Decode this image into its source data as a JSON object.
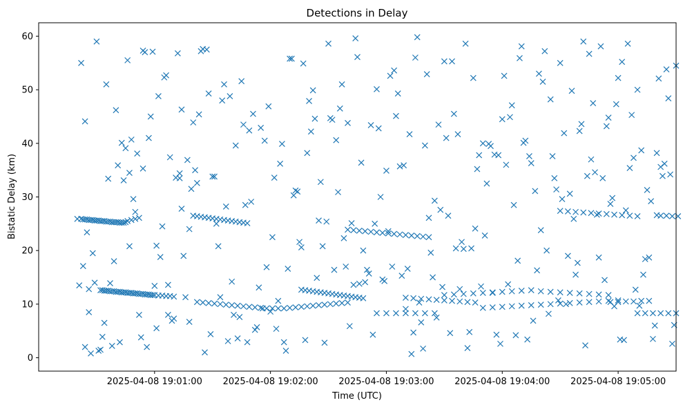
{
  "chart_data": {
    "type": "scatter",
    "title": "Detections in Delay",
    "xlabel": "Time (UTC)",
    "ylabel": "Bistatic Delay (km)",
    "marker": "x",
    "color": "#1f77b4",
    "grid": false,
    "legend": "none",
    "x_is_time": true,
    "x_start": "2025-04-08 19:00:10",
    "xlim": [
      "2025-04-08 19:00:00",
      "2025-04-08 19:05:30"
    ],
    "ylim": [
      -2.5,
      62.5
    ],
    "xticks": [
      {
        "label": "2025-04-08 19:01:00"
      },
      {
        "label": "2025-04-08 19:02:00"
      },
      {
        "label": "2025-04-08 19:03:00"
      },
      {
        "label": "2025-04-08 19:04:00"
      },
      {
        "label": "2025-04-08 19:05:00"
      }
    ],
    "yticks": [
      0,
      10,
      20,
      30,
      40,
      50,
      60
    ],
    "x_seconds": [
      10,
      12,
      13,
      14,
      15,
      16,
      17,
      18,
      19,
      20,
      21,
      22,
      23,
      24,
      25,
      26,
      27,
      28,
      29,
      30,
      31,
      32,
      33,
      34,
      35,
      36,
      38,
      40,
      42,
      22,
      23,
      24,
      25,
      26,
      27,
      28,
      29,
      30,
      31,
      32,
      33,
      34,
      35,
      36,
      37,
      38,
      39,
      40,
      41,
      42,
      43,
      44,
      45,
      46,
      47,
      48,
      49,
      50,
      52,
      54,
      56,
      58,
      60,
      70,
      72,
      74,
      76,
      78,
      80,
      82,
      84,
      86,
      88,
      90,
      92,
      94,
      96,
      98,
      72,
      75,
      78,
      81,
      84,
      87,
      90,
      93,
      96,
      99,
      102,
      105,
      108,
      111,
      114,
      117,
      120,
      123,
      126,
      129,
      132,
      135,
      138,
      141,
      144,
      147,
      150,
      126,
      128,
      130,
      132,
      134,
      136,
      138,
      140,
      142,
      144,
      146,
      148,
      150,
      152,
      154,
      156,
      158,
      150,
      153,
      156,
      159,
      162,
      165,
      168,
      171,
      174,
      177,
      180,
      183,
      186,
      189,
      192,
      165,
      170,
      175,
      180,
      185,
      190,
      195,
      180,
      184,
      188,
      192,
      196,
      200,
      204,
      208,
      212,
      216,
      200,
      205,
      210,
      215,
      220,
      225,
      230,
      235,
      240,
      245,
      250,
      255,
      260,
      265,
      270,
      275,
      280,
      285,
      220,
      225,
      230,
      235,
      240,
      245,
      250,
      255,
      260,
      265,
      270,
      275,
      280,
      285,
      290,
      260,
      264,
      268,
      272,
      276,
      280,
      284,
      288,
      292,
      296,
      300,
      286,
      290,
      294,
      298,
      302,
      306,
      300,
      304,
      308,
      312,
      316,
      320,
      310,
      312,
      315,
      318,
      321,
      12,
      14,
      16,
      20,
      25,
      30,
      34,
      36,
      38,
      40,
      45,
      50,
      52,
      55,
      58,
      62,
      65,
      68,
      70,
      75,
      80,
      85,
      90,
      95,
      100,
      105,
      110,
      115,
      120,
      125,
      130,
      135,
      140,
      145,
      150,
      155,
      160,
      165,
      170,
      175,
      180,
      185,
      190,
      195,
      200,
      205,
      210,
      215,
      220,
      225,
      230,
      235,
      240,
      245,
      250,
      255,
      260,
      265,
      270,
      275,
      280,
      285,
      290,
      295,
      300,
      305,
      310,
      315,
      320,
      11,
      15,
      18,
      22,
      27,
      31,
      37,
      41,
      44,
      48,
      53,
      57,
      61,
      64,
      67,
      71,
      74,
      78,
      83,
      87,
      92,
      97,
      102,
      107,
      112,
      117,
      122,
      127,
      132,
      137,
      142,
      147,
      152,
      157,
      162,
      167,
      172,
      177,
      182,
      187,
      192,
      197,
      202,
      207,
      212,
      217,
      222,
      227,
      232,
      237,
      242,
      247,
      252,
      257,
      262,
      267,
      272,
      277,
      282,
      287,
      292,
      297,
      302,
      307,
      312,
      317,
      13,
      19,
      24,
      29,
      33,
      39,
      43,
      47,
      51,
      56,
      60,
      63,
      66,
      69,
      73,
      77,
      81,
      86,
      91,
      96,
      101,
      106,
      111,
      116,
      121,
      126,
      131,
      136,
      141,
      146,
      151,
      156,
      161,
      166,
      171,
      176,
      181,
      186,
      191,
      196,
      201,
      206,
      211,
      216,
      221,
      226,
      231,
      236,
      241,
      246,
      251,
      256,
      261,
      266,
      271,
      276,
      281,
      286,
      291,
      296,
      301,
      306,
      311,
      316,
      16,
      21,
      26,
      32,
      35,
      42,
      46,
      49,
      54,
      59,
      64,
      72,
      79,
      84,
      89,
      94,
      99,
      104,
      109,
      114,
      119,
      124,
      129,
      134,
      139,
      144,
      149,
      154,
      159,
      164,
      169,
      174,
      179,
      184,
      189,
      194,
      199,
      204,
      209,
      214,
      219,
      224,
      229,
      234,
      239,
      244,
      249,
      254,
      259,
      264,
      269,
      274,
      279,
      284,
      289,
      294,
      299,
      304,
      309,
      314,
      319,
      14,
      17,
      23,
      28,
      37,
      44,
      51,
      57,
      63,
      68,
      76,
      82,
      88,
      93,
      98,
      103,
      108,
      113,
      118,
      123,
      128,
      133,
      138,
      143,
      148,
      153,
      158,
      163,
      168,
      173,
      178,
      183,
      188,
      193,
      198,
      203,
      208,
      213,
      218,
      223,
      228,
      233,
      238,
      243,
      248,
      253,
      258,
      263,
      268,
      273,
      278,
      283,
      288,
      293,
      298,
      303,
      308,
      313,
      318
    ],
    "y_km": [
      25.9,
      25.9,
      25.8,
      25.8,
      25.8,
      25.7,
      25.7,
      25.7,
      25.6,
      25.6,
      25.6,
      25.5,
      25.5,
      25.5,
      25.4,
      25.4,
      25.4,
      25.3,
      25.3,
      25.3,
      25.3,
      25.2,
      25.2,
      25.2,
      25.3,
      25.5,
      25.7,
      25.9,
      26.1,
      12.6,
      12.6,
      12.5,
      12.5,
      12.5,
      12.4,
      12.4,
      12.4,
      12.3,
      12.3,
      12.3,
      12.2,
      12.2,
      12.2,
      12.1,
      12.1,
      12.1,
      12.0,
      12.0,
      12.0,
      11.9,
      11.9,
      11.9,
      11.8,
      11.8,
      11.8,
      11.7,
      11.7,
      11.7,
      11.6,
      11.6,
      11.5,
      11.5,
      11.4,
      26.5,
      26.4,
      26.3,
      26.2,
      26.1,
      26.0,
      25.9,
      25.8,
      25.7,
      25.6,
      25.5,
      25.4,
      25.3,
      25.2,
      25.1,
      10.4,
      10.3,
      10.2,
      10.1,
      10.0,
      9.9,
      9.8,
      9.7,
      9.6,
      9.5,
      9.4,
      9.3,
      9.2,
      9.2,
      9.2,
      9.2,
      9.3,
      9.4,
      9.5,
      9.6,
      9.7,
      9.8,
      9.9,
      10.0,
      10.1,
      10.2,
      10.3,
      12.7,
      12.6,
      12.5,
      12.4,
      12.3,
      12.2,
      12.1,
      12.0,
      11.9,
      11.8,
      11.7,
      11.6,
      11.5,
      11.4,
      11.3,
      11.2,
      11.1,
      23.9,
      23.8,
      23.7,
      23.6,
      23.5,
      23.4,
      23.3,
      23.2,
      23.1,
      23.0,
      22.9,
      22.8,
      22.7,
      22.6,
      22.5,
      8.3,
      8.3,
      8.3,
      8.3,
      8.3,
      8.3,
      8.3,
      11.2,
      11.1,
      11.0,
      10.9,
      10.8,
      10.7,
      10.6,
      10.5,
      10.4,
      10.3,
      11.7,
      11.8,
      11.9,
      12.0,
      12.1,
      12.2,
      12.3,
      12.4,
      12.5,
      12.6,
      12.4,
      12.3,
      12.2,
      12.1,
      12.0,
      11.9,
      11.8,
      11.7,
      9.3,
      9.4,
      9.5,
      9.6,
      9.7,
      9.8,
      9.9,
      10.0,
      10.1,
      10.2,
      10.3,
      10.4,
      10.5,
      10.6,
      10.7,
      27.4,
      27.3,
      27.2,
      27.1,
      27.0,
      26.9,
      26.8,
      26.7,
      26.6,
      26.5,
      26.4,
      10.4,
      10.4,
      10.5,
      10.5,
      10.6,
      10.6,
      8.3,
      8.3,
      8.3,
      8.3,
      8.3,
      8.3,
      26.6,
      26.5,
      26.5,
      26.4,
      26.4,
      55.0,
      44.1,
      12.8,
      59.0,
      51.0,
      46.2,
      33.1,
      55.5,
      40.7,
      27.2,
      57.0,
      13.4,
      48.8,
      52.3,
      37.4,
      56.8,
      19.0,
      6.7,
      43.9,
      57.6,
      33.8,
      48.0,
      14.2,
      51.6,
      29.1,
      42.9,
      8.6,
      36.2,
      55.8,
      21.6,
      47.9,
      25.6,
      58.6,
      30.9,
      43.8,
      56.1,
      16.4,
      50.1,
      34.9,
      45.1,
      9.1,
      56.0,
      39.6,
      29.3,
      55.3,
      45.5,
      20.3,
      52.2,
      40.0,
      12.1,
      44.5,
      47.1,
      58.1,
      36.3,
      23.8,
      48.2,
      55.0,
      30.6,
      42.3,
      56.7,
      18.7,
      44.8,
      52.2,
      58.6,
      50.0,
      31.3,
      38.2,
      53.8,
      54.5,
      13.5,
      23.4,
      19.5,
      1.5,
      13.9,
      35.9,
      34.5,
      38.1,
      57.3,
      45.0,
      18.8,
      8.0,
      33.6,
      27.8,
      36.9,
      35.0,
      57.2,
      49.3,
      20.8,
      28.2,
      39.6,
      28.5,
      5.2,
      40.5,
      33.6,
      2.9,
      30.3,
      54.9,
      49.9,
      20.8,
      44.4,
      51.0,
      25.1,
      36.4,
      43.4,
      30.0,
      52.6,
      35.7,
      41.7,
      10.3,
      26.1,
      43.5,
      26.5,
      41.7,
      1.8,
      35.2,
      32.5,
      4.3,
      36.0,
      4.2,
      40.5,
      31.1,
      57.2,
      33.5,
      41.9,
      25.9,
      59.0,
      47.5,
      33.5,
      29.8,
      55.2,
      45.3,
      38.7,
      29.2,
      35.6,
      34.2,
      17.1,
      14.0,
      6.5,
      18.0,
      40.1,
      29.6,
      3.8,
      41.0,
      5.5,
      52.7,
      7.3,
      34.4,
      11.3,
      31.5,
      45.4,
      57.5,
      33.8,
      51.0,
      8.0,
      43.5,
      45.5,
      9.2,
      22.5,
      39.9,
      55.8,
      20.6,
      42.2,
      32.8,
      44.7,
      46.5,
      5.9,
      13.8,
      15.7,
      42.8,
      23.6,
      49.3,
      16.6,
      59.8,
      52.9,
      7.5,
      41.0,
      20.4,
      58.6,
      24.1,
      22.8,
      37.9,
      52.6,
      28.5,
      40.1,
      6.9,
      51.5,
      37.6,
      29.6,
      49.8,
      43.6,
      37.0,
      58.1,
      28.7,
      3.4,
      35.4,
      9.7,
      18.7,
      52.1,
      48.4,
      8.5,
      1.3,
      33.4,
      2.9,
      39.1,
      8.0,
      2.0,
      57.1,
      24.5,
      6.9,
      46.3,
      32.6,
      4.4,
      11.3,
      48.8,
      7.6,
      42.4,
      13.1,
      46.9,
      10.6,
      16.6,
      31.0,
      38.2,
      14.9,
      25.4,
      40.6,
      17.0,
      59.6,
      14.1,
      25.0,
      14.3,
      53.6,
      35.9,
      4.7,
      1.7,
      15.0,
      13.2,
      55.3,
      21.6,
      20.4,
      13.3,
      39.5,
      2.6,
      44.9,
      55.9,
      37.6,
      53.0,
      8.2,
      10.7,
      19.0,
      17.7,
      33.9,
      26.7,
      43.2,
      47.3,
      27.5,
      12.7,
      18.4,
      6.0,
      36.2,
      6.1,
      2.0,
      0.8,
      3.9,
      2.2,
      20.8,
      35.3,
      20.9,
      13.6,
      33.5,
      24.0,
      1.0,
      25.0,
      3.1,
      3.6,
      2.9,
      5.7,
      16.9,
      5.4,
      1.3,
      31.2,
      3.3,
      44.6,
      2.8,
      16.4,
      22.3,
      13.6,
      20.0,
      4.3,
      14.6,
      17.0,
      15.3,
      0.7,
      6.6,
      19.6,
      27.6,
      4.6,
      12.8,
      4.8,
      37.8,
      39.9,
      37.8,
      13.7,
      18.1,
      3.4,
      16.3,
      20.0,
      31.4,
      10.0,
      15.5,
      2.3,
      34.6,
      14.5,
      9.6,
      3.3,
      37.3,
      15.5,
      3.5,
      33.9,
      2.6
    ]
  }
}
